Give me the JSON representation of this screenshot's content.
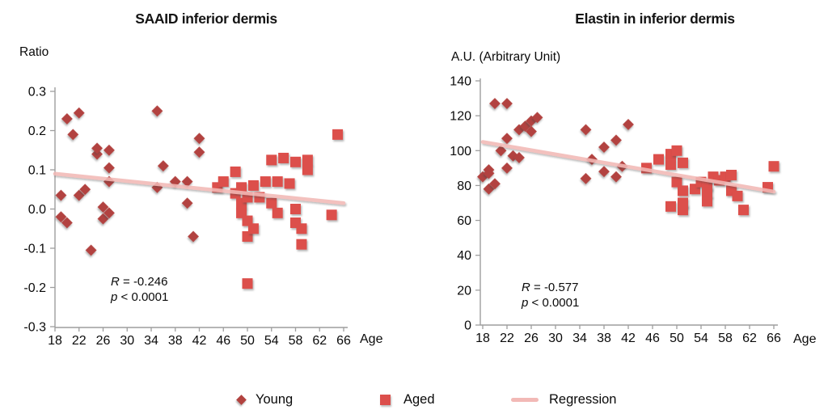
{
  "figure": {
    "background": "#ffffff"
  },
  "colors": {
    "young": "#b2423f",
    "aged": "#dc4f4c",
    "regression": "#f2b9b6",
    "axis": "#9e9e9e",
    "text": "#0a0a0a"
  },
  "legend": {
    "items": [
      {
        "label": "Young",
        "marker": "diamond"
      },
      {
        "label": "Aged",
        "marker": "square"
      },
      {
        "label": "Regression",
        "marker": "line"
      }
    ]
  },
  "chart_data": [
    {
      "type": "scatter",
      "title": "SAAID inferior dermis",
      "y_axis_label": "Ratio",
      "x_axis_label": "Age",
      "xlim": [
        18,
        66
      ],
      "ylim": [
        -0.3,
        0.3
      ],
      "x_ticks": [
        "18",
        "22",
        "26",
        "30",
        "34",
        "38",
        "42",
        "46",
        "50",
        "54",
        "58",
        "62",
        "66"
      ],
      "y_ticks": [
        "0.3",
        "0.2",
        "0.1",
        "0.0",
        "-0.1",
        "-0.2",
        "-0.3"
      ],
      "grid": false,
      "stats": {
        "r_label": "R",
        "r_value": " = -0.246",
        "p_label": "p",
        "p_value": " < 0.0001"
      },
      "series": [
        {
          "name": "Young",
          "marker": "diamond",
          "points": [
            [
              19,
              0.035
            ],
            [
              19,
              -0.02
            ],
            [
              20,
              0.23
            ],
            [
              20,
              -0.035
            ],
            [
              21,
              0.19
            ],
            [
              22,
              0.245
            ],
            [
              22,
              0.035
            ],
            [
              23,
              0.05
            ],
            [
              24,
              -0.105
            ],
            [
              25,
              0.14
            ],
            [
              25,
              0.155
            ],
            [
              26,
              0.005
            ],
            [
              26,
              -0.025
            ],
            [
              27,
              0.15
            ],
            [
              27,
              0.105
            ],
            [
              27,
              0.07
            ],
            [
              27,
              -0.01
            ],
            [
              35,
              0.25
            ],
            [
              35,
              0.055
            ],
            [
              36,
              0.11
            ],
            [
              38,
              0.07
            ],
            [
              40,
              0.07
            ],
            [
              40,
              0.015
            ],
            [
              41,
              -0.07
            ],
            [
              42,
              0.18
            ],
            [
              42,
              0.145
            ]
          ]
        },
        {
          "name": "Aged",
          "marker": "square",
          "points": [
            [
              45,
              0.055
            ],
            [
              46,
              0.07
            ],
            [
              48,
              0.095
            ],
            [
              48,
              0.04
            ],
            [
              49,
              0.055
            ],
            [
              49,
              0.015
            ],
            [
              49,
              -0.01
            ],
            [
              50,
              0.03
            ],
            [
              50,
              -0.03
            ],
            [
              50,
              -0.07
            ],
            [
              50,
              -0.19
            ],
            [
              51,
              0.06
            ],
            [
              51,
              -0.05
            ],
            [
              52,
              0.03
            ],
            [
              53,
              0.07
            ],
            [
              54,
              0.125
            ],
            [
              54,
              0.015
            ],
            [
              55,
              0.07
            ],
            [
              55,
              -0.01
            ],
            [
              56,
              0.13
            ],
            [
              57,
              0.065
            ],
            [
              58,
              0.12
            ],
            [
              58,
              0.0
            ],
            [
              58,
              -0.035
            ],
            [
              59,
              -0.05
            ],
            [
              59,
              -0.09
            ],
            [
              60,
              0.125
            ],
            [
              60,
              0.1
            ],
            [
              64,
              -0.015
            ],
            [
              65,
              0.19
            ]
          ]
        }
      ],
      "regression": {
        "x": [
          18,
          66
        ],
        "y": [
          0.09,
          0.015
        ]
      }
    },
    {
      "type": "scatter",
      "title": "Elastin in inferior dermis",
      "y_axis_label": "A.U. (Arbitrary Unit)",
      "x_axis_label": "Age",
      "xlim": [
        18,
        66
      ],
      "ylim": [
        0,
        140
      ],
      "x_ticks": [
        "18",
        "22",
        "26",
        "30",
        "34",
        "38",
        "42",
        "46",
        "50",
        "54",
        "58",
        "62",
        "66"
      ],
      "y_ticks": [
        "140",
        "120",
        "100",
        "80",
        "60",
        "40",
        "20",
        "0"
      ],
      "grid": false,
      "stats": {
        "r_label": "R",
        "r_value": " = -0.577",
        "p_label": "p",
        "p_value": " < 0.0001"
      },
      "series": [
        {
          "name": "Young",
          "marker": "diamond",
          "points": [
            [
              18,
              85
            ],
            [
              19,
              89
            ],
            [
              19,
              87
            ],
            [
              19,
              78
            ],
            [
              20,
              127
            ],
            [
              20,
              81
            ],
            [
              21,
              100
            ],
            [
              22,
              127
            ],
            [
              22,
              107
            ],
            [
              22,
              90
            ],
            [
              23,
              97
            ],
            [
              24,
              112
            ],
            [
              24,
              96
            ],
            [
              25,
              114
            ],
            [
              26,
              117
            ],
            [
              26,
              111
            ],
            [
              27,
              119
            ],
            [
              35,
              112
            ],
            [
              35,
              84
            ],
            [
              36,
              95
            ],
            [
              38,
              102
            ],
            [
              38,
              88
            ],
            [
              40,
              106
            ],
            [
              40,
              85
            ],
            [
              41,
              91
            ],
            [
              42,
              115
            ]
          ]
        },
        {
          "name": "Aged",
          "marker": "square",
          "points": [
            [
              45,
              90
            ],
            [
              47,
              95
            ],
            [
              49,
              98
            ],
            [
              49,
              92
            ],
            [
              49,
              68
            ],
            [
              50,
              100
            ],
            [
              50,
              82
            ],
            [
              51,
              93
            ],
            [
              51,
              77
            ],
            [
              51,
              70
            ],
            [
              51,
              66
            ],
            [
              53,
              78
            ],
            [
              54,
              82
            ],
            [
              55,
              80
            ],
            [
              55,
              76
            ],
            [
              55,
              71
            ],
            [
              56,
              85
            ],
            [
              57,
              83
            ],
            [
              58,
              85
            ],
            [
              59,
              86
            ],
            [
              59,
              77
            ],
            [
              60,
              74
            ],
            [
              61,
              66
            ],
            [
              65,
              79
            ],
            [
              66,
              91
            ]
          ]
        }
      ],
      "regression": {
        "x": [
          18,
          66
        ],
        "y": [
          105,
          76.5
        ]
      }
    }
  ]
}
